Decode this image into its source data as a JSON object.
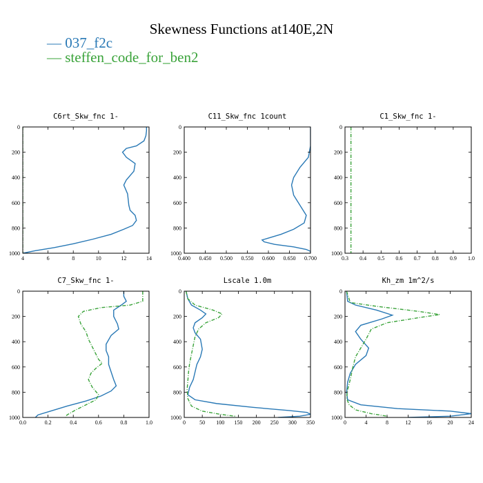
{
  "chart_data": {
    "title": "Skewness Functions at140E,2N",
    "legend": [
      {
        "label": "— 037_f2c",
        "color": "#2878b5"
      },
      {
        "label": "— steffen_code_for_ben2",
        "color": "#3aa33a"
      }
    ],
    "panels": [
      {
        "title": "C6rt_Skw_fnc  1-",
        "type": "line",
        "xlim": [
          4,
          14
        ],
        "ylim": [
          0,
          1000
        ],
        "y_inverted": true,
        "xticks": [
          4,
          6,
          8,
          10,
          12,
          14
        ],
        "xtick_labels": [
          "4",
          "6",
          "8",
          "10",
          "12",
          "14"
        ],
        "yticks": [
          0,
          200,
          400,
          600,
          800,
          1000
        ],
        "ytick_labels": [
          "0",
          "200",
          "400",
          "600",
          "800",
          "1000"
        ],
        "series": [
          {
            "color": "#2878b5",
            "dashed": false,
            "points": [
              [
                13.8,
                0
              ],
              [
                13.8,
                30
              ],
              [
                13.75,
                70
              ],
              [
                13.6,
                110
              ],
              [
                13,
                150
              ],
              [
                12.2,
                170
              ],
              [
                11.9,
                200
              ],
              [
                12.2,
                240
              ],
              [
                12.9,
                290
              ],
              [
                12.8,
                350
              ],
              [
                12.2,
                420
              ],
              [
                12,
                460
              ],
              [
                12.3,
                530
              ],
              [
                12.4,
                620
              ],
              [
                12.5,
                660
              ],
              [
                12.9,
                700
              ],
              [
                13,
                740
              ],
              [
                12.7,
                780
              ],
              [
                12,
                810
              ],
              [
                11,
                850
              ],
              [
                9.5,
                890
              ],
              [
                8,
                925
              ],
              [
                6.5,
                955
              ],
              [
                5,
                980
              ],
              [
                4,
                1000
              ]
            ]
          },
          {
            "color": "#3aa33a",
            "dashed": true,
            "points": [
              [
                4,
                0
              ],
              [
                4,
                1000
              ]
            ]
          }
        ]
      },
      {
        "title": "C11_Skw_fnc  1count",
        "type": "line",
        "xlim": [
          0.4,
          0.7
        ],
        "ylim": [
          0,
          1000
        ],
        "y_inverted": true,
        "xticks": [
          0.4,
          0.45,
          0.5,
          0.55,
          0.6,
          0.65,
          0.7
        ],
        "xtick_labels": [
          "0.400",
          "0.450",
          "0.500",
          "0.550",
          "0.600",
          "0.650",
          "0.700"
        ],
        "yticks": [
          0,
          200,
          400,
          600,
          800,
          1000
        ],
        "ytick_labels": [
          "0",
          "200",
          "400",
          "600",
          "800",
          "1000"
        ],
        "series": [
          {
            "color": "#2878b5",
            "dashed": false,
            "points": [
              [
                0.7,
                0
              ],
              [
                0.7,
                150
              ],
              [
                0.695,
                240
              ],
              [
                0.675,
                320
              ],
              [
                0.66,
                400
              ],
              [
                0.655,
                460
              ],
              [
                0.66,
                540
              ],
              [
                0.675,
                620
              ],
              [
                0.69,
                700
              ],
              [
                0.685,
                760
              ],
              [
                0.66,
                810
              ],
              [
                0.63,
                850
              ],
              [
                0.6,
                880
              ],
              [
                0.585,
                895
              ],
              [
                0.59,
                910
              ],
              [
                0.615,
                930
              ],
              [
                0.66,
                950
              ],
              [
                0.69,
                970
              ],
              [
                0.7,
                985
              ],
              [
                0.7,
                1000
              ]
            ]
          }
        ]
      },
      {
        "title": "C1_Skw_fnc  1-",
        "type": "line",
        "xlim": [
          0.3,
          1.0
        ],
        "ylim": [
          0,
          1000
        ],
        "y_inverted": true,
        "xticks": [
          0.3,
          0.4,
          0.5,
          0.6,
          0.7,
          0.8,
          0.9,
          1.0
        ],
        "xtick_labels": [
          "0.3",
          "0.4",
          "0.5",
          "0.6",
          "0.7",
          "0.8",
          "0.9",
          "1.0"
        ],
        "yticks": [
          0,
          200,
          400,
          600,
          800,
          1000
        ],
        "ytick_labels": [
          "0",
          "200",
          "400",
          "600",
          "800",
          "1000"
        ],
        "series": [
          {
            "color": "#3aa33a",
            "dashed": true,
            "points": [
              [
                0.333,
                0
              ],
              [
                0.333,
                1000
              ]
            ]
          }
        ]
      },
      {
        "title": "C7_Skw_fnc  1-",
        "type": "line",
        "xlim": [
          0.0,
          1.0
        ],
        "ylim": [
          0,
          1000
        ],
        "y_inverted": true,
        "xticks": [
          0,
          0.2,
          0.4,
          0.6,
          0.8,
          1.0
        ],
        "xtick_labels": [
          "0.0",
          "0.2",
          "0.4",
          "0.6",
          "0.8",
          "1.0"
        ],
        "yticks": [
          0,
          200,
          400,
          600,
          800,
          1000
        ],
        "ytick_labels": [
          "0",
          "200",
          "400",
          "600",
          "800",
          "1000"
        ],
        "series": [
          {
            "color": "#2878b5",
            "dashed": false,
            "points": [
              [
                0.8,
                0
              ],
              [
                0.8,
                40
              ],
              [
                0.82,
                80
              ],
              [
                0.78,
                110
              ],
              [
                0.72,
                150
              ],
              [
                0.72,
                200
              ],
              [
                0.75,
                260
              ],
              [
                0.76,
                300
              ],
              [
                0.7,
                350
              ],
              [
                0.66,
                420
              ],
              [
                0.66,
                470
              ],
              [
                0.68,
                520
              ],
              [
                0.68,
                580
              ],
              [
                0.7,
                640
              ],
              [
                0.72,
                700
              ],
              [
                0.74,
                750
              ],
              [
                0.7,
                790
              ],
              [
                0.62,
                830
              ],
              [
                0.5,
                870
              ],
              [
                0.35,
                910
              ],
              [
                0.22,
                950
              ],
              [
                0.12,
                980
              ],
              [
                0.1,
                1000
              ]
            ]
          },
          {
            "color": "#3aa33a",
            "dashed": true,
            "points": [
              [
                0.95,
                0
              ],
              [
                0.95,
                80
              ],
              [
                0.85,
                110
              ],
              [
                0.62,
                130
              ],
              [
                0.48,
                160
              ],
              [
                0.44,
                200
              ],
              [
                0.46,
                260
              ],
              [
                0.5,
                320
              ],
              [
                0.52,
                380
              ],
              [
                0.55,
                440
              ],
              [
                0.58,
                500
              ],
              [
                0.6,
                540
              ],
              [
                0.63,
                570
              ],
              [
                0.58,
                610
              ],
              [
                0.54,
                650
              ],
              [
                0.52,
                700
              ],
              [
                0.55,
                760
              ],
              [
                0.6,
                820
              ],
              [
                0.58,
                860
              ],
              [
                0.5,
                900
              ],
              [
                0.42,
                940
              ],
              [
                0.35,
                980
              ],
              [
                0.34,
                1000
              ]
            ]
          }
        ]
      },
      {
        "title": "Lscale  1.0m",
        "type": "line",
        "xlim": [
          0,
          350
        ],
        "ylim": [
          0,
          1000
        ],
        "y_inverted": true,
        "xticks": [
          0,
          50,
          100,
          150,
          200,
          250,
          300,
          350
        ],
        "xtick_labels": [
          "0",
          "50",
          "100",
          "150",
          "200",
          "250",
          "300",
          "350"
        ],
        "yticks": [
          0,
          200,
          400,
          600,
          800,
          1000
        ],
        "ytick_labels": [
          "0",
          "200",
          "400",
          "600",
          "800",
          "1000"
        ],
        "series": [
          {
            "color": "#2878b5",
            "dashed": false,
            "points": [
              [
                5,
                0
              ],
              [
                10,
                60
              ],
              [
                20,
                110
              ],
              [
                45,
                150
              ],
              [
                60,
                180
              ],
              [
                50,
                210
              ],
              [
                30,
                250
              ],
              [
                25,
                290
              ],
              [
                30,
                330
              ],
              [
                45,
                380
              ],
              [
                50,
                460
              ],
              [
                45,
                520
              ],
              [
                35,
                580
              ],
              [
                30,
                640
              ],
              [
                25,
                700
              ],
              [
                15,
                760
              ],
              [
                10,
                820
              ],
              [
                30,
                860
              ],
              [
                90,
                890
              ],
              [
                190,
                920
              ],
              [
                290,
                945
              ],
              [
                340,
                960
              ],
              [
                350,
                975
              ],
              [
                320,
                990
              ],
              [
                260,
                1000
              ]
            ]
          },
          {
            "color": "#3aa33a",
            "dashed": true,
            "points": [
              [
                5,
                0
              ],
              [
                10,
                60
              ],
              [
                30,
                110
              ],
              [
                80,
                150
              ],
              [
                105,
                180
              ],
              [
                95,
                210
              ],
              [
                60,
                250
              ],
              [
                40,
                300
              ],
              [
                30,
                360
              ],
              [
                25,
                430
              ],
              [
                20,
                500
              ],
              [
                15,
                570
              ],
              [
                12,
                640
              ],
              [
                10,
                710
              ],
              [
                8,
                780
              ],
              [
                10,
                850
              ],
              [
                20,
                910
              ],
              [
                50,
                950
              ],
              [
                100,
                975
              ],
              [
                140,
                990
              ],
              [
                140,
                1000
              ]
            ]
          }
        ]
      },
      {
        "title": "Kh_zm  1m^2/s",
        "type": "line",
        "xlim": [
          0,
          24
        ],
        "ylim": [
          0,
          1000
        ],
        "y_inverted": true,
        "xticks": [
          0,
          4,
          8,
          12,
          16,
          20,
          24
        ],
        "xtick_labels": [
          "0",
          "4",
          "8",
          "12",
          "16",
          "20",
          "24"
        ],
        "yticks": [
          0,
          200,
          400,
          600,
          800,
          1000
        ],
        "ytick_labels": [
          "0",
          "200",
          "400",
          "600",
          "800",
          "1000"
        ],
        "series": [
          {
            "color": "#2878b5",
            "dashed": false,
            "points": [
              [
                0.3,
                0
              ],
              [
                0.5,
                80
              ],
              [
                2,
                110
              ],
              [
                6,
                150
              ],
              [
                9,
                190
              ],
              [
                7,
                220
              ],
              [
                3,
                270
              ],
              [
                2,
                320
              ],
              [
                3,
                380
              ],
              [
                4.5,
                450
              ],
              [
                4,
                510
              ],
              [
                2,
                580
              ],
              [
                1,
                650
              ],
              [
                0.5,
                720
              ],
              [
                0.3,
                800
              ],
              [
                0.5,
                860
              ],
              [
                3,
                900
              ],
              [
                10,
                930
              ],
              [
                20,
                950
              ],
              [
                24,
                970
              ],
              [
                20,
                990
              ],
              [
                12,
                1000
              ]
            ]
          },
          {
            "color": "#3aa33a",
            "dashed": true,
            "points": [
              [
                0.3,
                0
              ],
              [
                1,
                90
              ],
              [
                6,
                120
              ],
              [
                14,
                160
              ],
              [
                18,
                185
              ],
              [
                14,
                210
              ],
              [
                8,
                250
              ],
              [
                5,
                300
              ],
              [
                4,
                380
              ],
              [
                3,
                450
              ],
              [
                2,
                520
              ],
              [
                1.5,
                600
              ],
              [
                1,
                700
              ],
              [
                0.5,
                780
              ],
              [
                0.3,
                850
              ],
              [
                0.8,
                900
              ],
              [
                2,
                940
              ],
              [
                5,
                970
              ],
              [
                8,
                990
              ],
              [
                8,
                1000
              ]
            ]
          }
        ]
      }
    ]
  }
}
